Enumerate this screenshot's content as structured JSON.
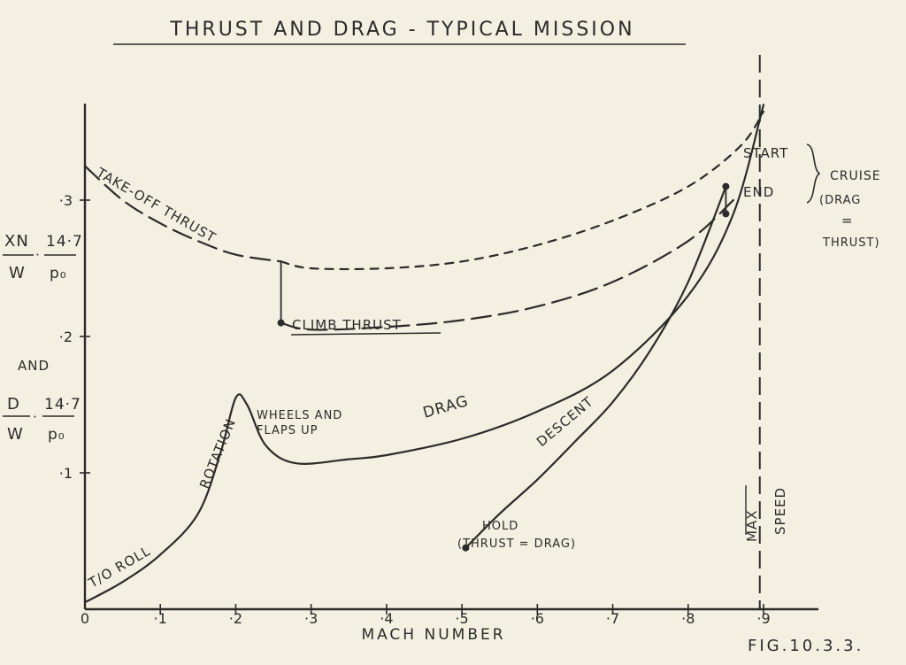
{
  "chart_data": {
    "type": "line",
    "title": "THRUST AND DRAG - TYPICAL MISSION",
    "xlabel": "MACH NUMBER",
    "ylabel": {
      "line1_num": "XN",
      "line1_mid": "14·7",
      "line1_den_left": "W",
      "line1_den_right": "p₀",
      "connector": "AND",
      "line2_num": "D",
      "line2_mid": "14·7",
      "line2_den_left": "W",
      "line2_den_right": "p₀"
    },
    "x_ticks": [
      "0",
      "·1",
      "·2",
      "·3",
      "·4",
      "·5",
      "·6",
      "·7",
      "·8",
      "·9"
    ],
    "y_ticks": [
      "·1",
      "·2",
      "·3"
    ],
    "xlim": [
      0,
      0.9
    ],
    "ylim": [
      0,
      0.38
    ],
    "grid": false,
    "series": [
      {
        "name": "TAKE-OFF THRUST",
        "style": "long-dash",
        "x": [
          0,
          0.05,
          0.1,
          0.15,
          0.2,
          0.26
        ],
        "y": [
          0.325,
          0.3,
          0.283,
          0.27,
          0.26,
          0.255
        ]
      },
      {
        "name": "",
        "style": "short-dash",
        "x": [
          0.26,
          0.3,
          0.4,
          0.5,
          0.6,
          0.7,
          0.8,
          0.87,
          0.9
        ],
        "y": [
          0.255,
          0.25,
          0.25,
          0.255,
          0.267,
          0.285,
          0.31,
          0.34,
          0.365
        ]
      },
      {
        "name": "CLIMB THRUST",
        "style": "long-dash",
        "x": [
          0.26,
          0.3,
          0.4,
          0.5,
          0.6,
          0.7,
          0.8,
          0.86
        ],
        "y": [
          0.21,
          0.205,
          0.207,
          0.212,
          0.222,
          0.24,
          0.27,
          0.3
        ]
      },
      {
        "name": "DRAG",
        "style": "solid",
        "x": [
          0,
          0.05,
          0.1,
          0.15,
          0.18,
          0.2,
          0.215,
          0.24,
          0.28,
          0.35,
          0.4,
          0.5,
          0.6,
          0.7,
          0.8,
          0.86,
          0.9
        ],
        "y": [
          0.005,
          0.02,
          0.04,
          0.07,
          0.115,
          0.155,
          0.15,
          0.12,
          0.107,
          0.11,
          0.113,
          0.125,
          0.145,
          0.175,
          0.23,
          0.29,
          0.37
        ]
      },
      {
        "name": "DESCENT",
        "style": "solid",
        "x": [
          0.505,
          0.55,
          0.6,
          0.65,
          0.7,
          0.75,
          0.8,
          0.85
        ],
        "y": [
          0.045,
          0.07,
          0.095,
          0.123,
          0.152,
          0.19,
          0.24,
          0.31
        ]
      }
    ],
    "markers": [
      {
        "x": 0.505,
        "y": 0.045
      },
      {
        "x": 0.26,
        "y": 0.21
      },
      {
        "x": 0.85,
        "y": 0.31
      },
      {
        "x": 0.85,
        "y": 0.29
      }
    ],
    "reference_lines": [
      {
        "type": "vertical",
        "x": 0.895,
        "style": "dashed"
      }
    ],
    "annotations": {
      "takeoff_thrust": "TAKE-OFF THRUST",
      "climb_thrust": "CLIMB THRUST",
      "drag": "DRAG",
      "descent": "DESCENT",
      "rotation": "ROTATION",
      "to_roll": "T/O ROLL",
      "wheels_line1": "WHEELS AND",
      "wheels_line2": "FLAPS UP",
      "hold_line1": "HOLD",
      "hold_line2": "(THRUST = DRAG)",
      "start": "START",
      "end": "END",
      "cruise_line1": "CRUISE",
      "cruise_line2": "(DRAG",
      "cruise_line3": "=",
      "cruise_line4": "THRUST)",
      "max": "MAX",
      "speed": "SPEED"
    }
  },
  "figure_label": "FIG.10.3.3.",
  "colors": {
    "background": "#f3efe1",
    "ink": "#2b2b2b"
  }
}
